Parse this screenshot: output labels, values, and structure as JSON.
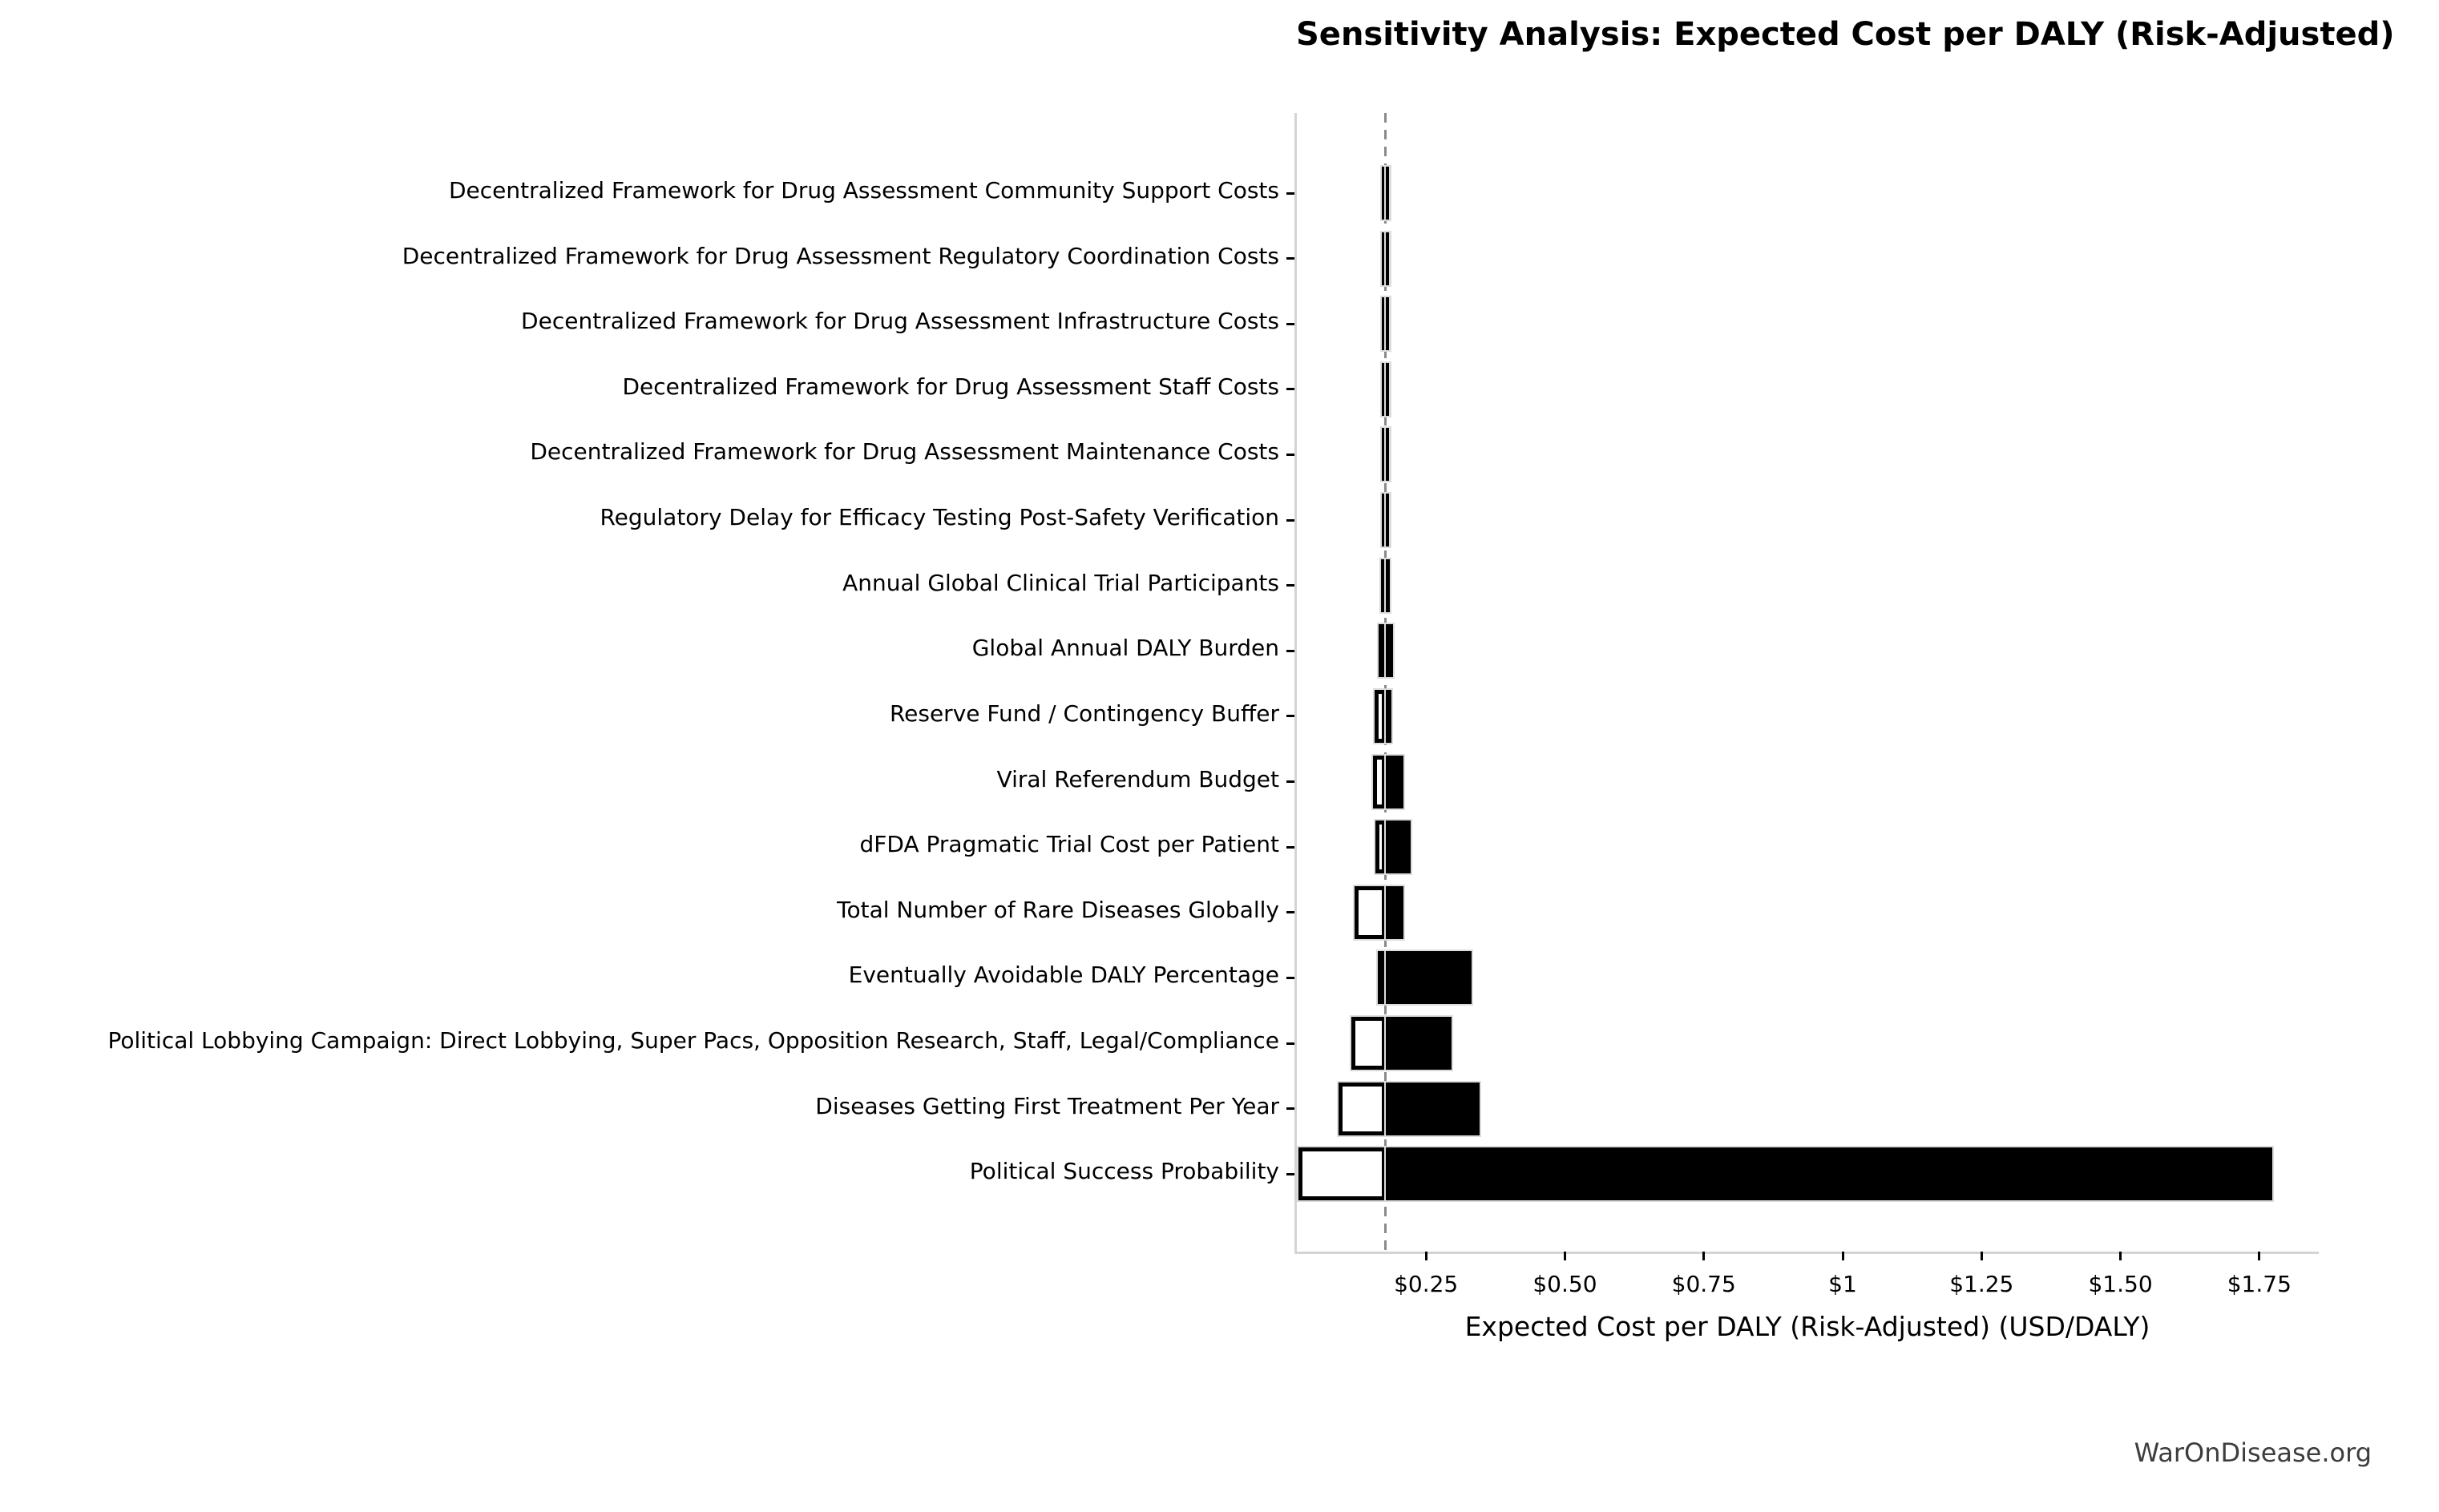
{
  "title": "Sensitivity Analysis: Expected Cost per DALY (Risk-Adjusted)",
  "watermark": "WarOnDisease.org",
  "colors": {
    "high_bar": "#000000",
    "low_bar_fill": "#ffffff",
    "low_bar_border": "#000000",
    "bar_edge": "#dcdcdc",
    "baseline_dash": "#8a8a8a",
    "spine": "#d4d4d4",
    "watermark_text": "#3d3d3d"
  },
  "chart_data": {
    "type": "bar",
    "subtype": "tornado",
    "orientation": "horizontal",
    "title": "Sensitivity Analysis: Expected Cost per DALY (Risk-Adjusted)",
    "xlabel": "Expected Cost per DALY (Risk-Adjusted) (USD/DALY)",
    "ylabel": "",
    "xlim": [
      0.016,
      1.857
    ],
    "baseline_value": 0.177,
    "grid": false,
    "legend_position": "none",
    "x_ticks": [
      {
        "value": 0.25,
        "label": "$0.25"
      },
      {
        "value": 0.5,
        "label": "$0.50"
      },
      {
        "value": 0.75,
        "label": "$0.75"
      },
      {
        "value": 1.0,
        "label": "$1"
      },
      {
        "value": 1.25,
        "label": "$1.25"
      },
      {
        "value": 1.5,
        "label": "$1.50"
      },
      {
        "value": 1.75,
        "label": "$1.75"
      }
    ],
    "categories": [
      "Decentralized Framework for Drug Assessment Community Support Costs",
      "Decentralized Framework for Drug Assessment Regulatory Coordination Costs",
      "Decentralized Framework for Drug Assessment Infrastructure Costs",
      "Decentralized Framework for Drug Assessment Staff Costs",
      "Decentralized Framework for Drug Assessment Maintenance Costs",
      "Regulatory Delay for Efficacy Testing Post-Safety Verification",
      "Annual Global Clinical Trial Participants",
      "Global Annual DALY Burden",
      "Reserve Fund / Contingency Buffer",
      "Viral Referendum Budget",
      "dFDA Pragmatic Trial Cost per Patient",
      "Total Number of Rare Diseases Globally",
      "Eventually Avoidable DALY Percentage",
      "Political Lobbying Campaign: Direct Lobbying, Super Pacs, Opposition Research, Staff, Legal/Compliance",
      "Diseases Getting First Treatment Per Year",
      "Political Success Probability"
    ],
    "series": [
      {
        "name": "low",
        "values": [
          0.171,
          0.171,
          0.171,
          0.171,
          0.17,
          0.17,
          0.169,
          0.164,
          0.158,
          0.155,
          0.159,
          0.121,
          0.163,
          0.115,
          0.093,
          0.02
        ]
      },
      {
        "name": "high",
        "values": [
          0.183,
          0.183,
          0.183,
          0.184,
          0.184,
          0.184,
          0.185,
          0.191,
          0.188,
          0.209,
          0.222,
          0.209,
          0.332,
          0.296,
          0.346,
          1.774
        ]
      }
    ]
  }
}
